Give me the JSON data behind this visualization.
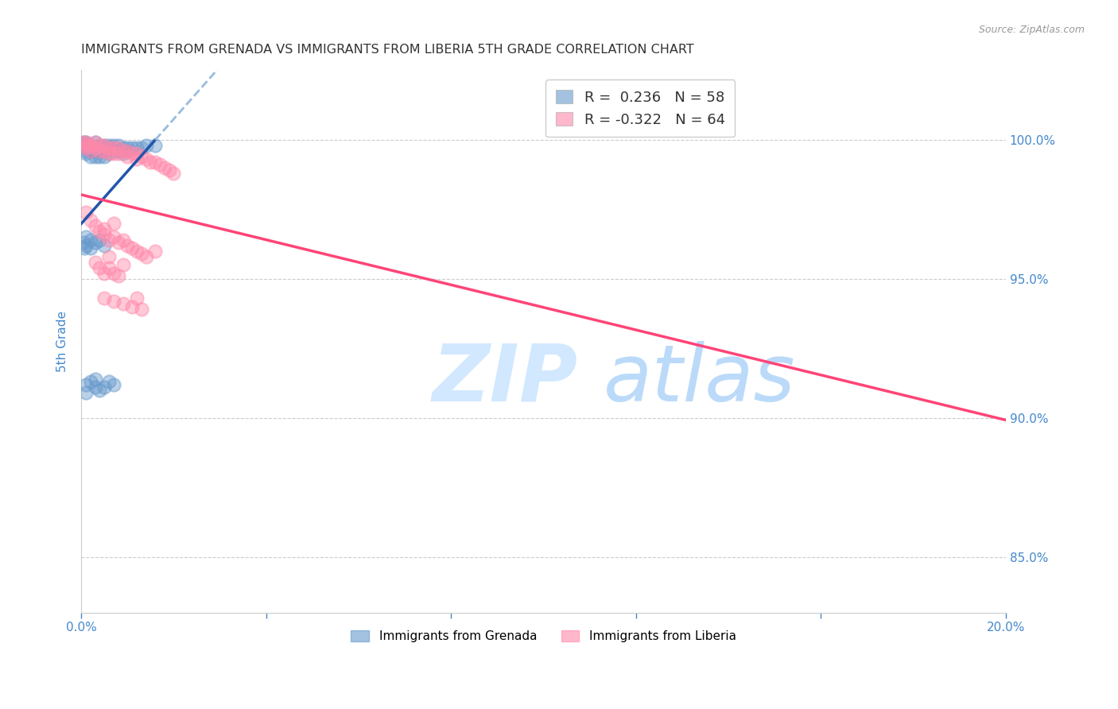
{
  "title": "IMMIGRANTS FROM GRENADA VS IMMIGRANTS FROM LIBERIA 5TH GRADE CORRELATION CHART",
  "source": "Source: ZipAtlas.com",
  "ylabel": "5th Grade",
  "ytick_labels": [
    "100.0%",
    "95.0%",
    "90.0%",
    "85.0%"
  ],
  "ytick_values": [
    1.0,
    0.95,
    0.9,
    0.85
  ],
  "xlim": [
    0.0,
    0.2
  ],
  "ylim": [
    0.83,
    1.025
  ],
  "legend_r_grenada": "R =  0.236   N = 58",
  "legend_r_liberia": "R = -0.322   N = 64",
  "color_grenada": "#6699cc",
  "color_liberia": "#ff88aa",
  "trendline_grenada_solid": "#2255aa",
  "trendline_grenada_dash": "#99bbdd",
  "trendline_liberia": "#ff4477",
  "background_color": "#ffffff",
  "grid_color": "#cccccc",
  "title_color": "#333333",
  "tick_label_color": "#4488cc",
  "grenada_x": [
    0.0005,
    0.0007,
    0.0008,
    0.001,
    0.001,
    0.001,
    0.001,
    0.0015,
    0.0015,
    0.002,
    0.002,
    0.002,
    0.002,
    0.003,
    0.003,
    0.003,
    0.003,
    0.004,
    0.004,
    0.004,
    0.004,
    0.005,
    0.005,
    0.005,
    0.006,
    0.006,
    0.006,
    0.007,
    0.007,
    0.008,
    0.008,
    0.009,
    0.009,
    0.01,
    0.01,
    0.011,
    0.012,
    0.013,
    0.014,
    0.016,
    0.0005,
    0.0007,
    0.001,
    0.001,
    0.002,
    0.002,
    0.003,
    0.004,
    0.005,
    0.001,
    0.001,
    0.002,
    0.003,
    0.003,
    0.004,
    0.005,
    0.006,
    0.007
  ],
  "grenada_y": [
    0.999,
    0.998,
    0.997,
    0.999,
    0.998,
    0.996,
    0.995,
    0.998,
    0.997,
    0.998,
    0.997,
    0.996,
    0.994,
    0.999,
    0.997,
    0.996,
    0.994,
    0.998,
    0.997,
    0.996,
    0.994,
    0.998,
    0.996,
    0.994,
    0.998,
    0.997,
    0.995,
    0.998,
    0.996,
    0.998,
    0.996,
    0.997,
    0.995,
    0.997,
    0.996,
    0.997,
    0.997,
    0.997,
    0.998,
    0.998,
    0.963,
    0.961,
    0.965,
    0.962,
    0.964,
    0.961,
    0.963,
    0.964,
    0.962,
    0.912,
    0.909,
    0.913,
    0.914,
    0.911,
    0.91,
    0.911,
    0.913,
    0.912
  ],
  "liberia_x": [
    0.0005,
    0.0008,
    0.001,
    0.001,
    0.0015,
    0.002,
    0.002,
    0.003,
    0.003,
    0.004,
    0.004,
    0.005,
    0.005,
    0.006,
    0.006,
    0.007,
    0.007,
    0.008,
    0.008,
    0.009,
    0.01,
    0.01,
    0.011,
    0.012,
    0.012,
    0.013,
    0.014,
    0.015,
    0.016,
    0.017,
    0.018,
    0.019,
    0.02,
    0.001,
    0.002,
    0.003,
    0.004,
    0.005,
    0.006,
    0.007,
    0.008,
    0.009,
    0.01,
    0.011,
    0.012,
    0.013,
    0.014,
    0.003,
    0.004,
    0.005,
    0.006,
    0.007,
    0.008,
    0.005,
    0.007,
    0.009,
    0.011,
    0.013,
    0.005,
    0.009,
    0.006,
    0.012,
    0.016,
    0.007
  ],
  "liberia_y": [
    0.999,
    0.998,
    0.999,
    0.997,
    0.998,
    0.998,
    0.996,
    0.999,
    0.997,
    0.998,
    0.996,
    0.998,
    0.996,
    0.997,
    0.995,
    0.997,
    0.995,
    0.997,
    0.995,
    0.996,
    0.996,
    0.994,
    0.995,
    0.995,
    0.993,
    0.994,
    0.993,
    0.992,
    0.992,
    0.991,
    0.99,
    0.989,
    0.988,
    0.974,
    0.971,
    0.969,
    0.967,
    0.966,
    0.964,
    0.965,
    0.963,
    0.964,
    0.962,
    0.961,
    0.96,
    0.959,
    0.958,
    0.956,
    0.954,
    0.952,
    0.954,
    0.952,
    0.951,
    0.943,
    0.942,
    0.941,
    0.94,
    0.939,
    0.968,
    0.955,
    0.958,
    0.943,
    0.96,
    0.97
  ]
}
